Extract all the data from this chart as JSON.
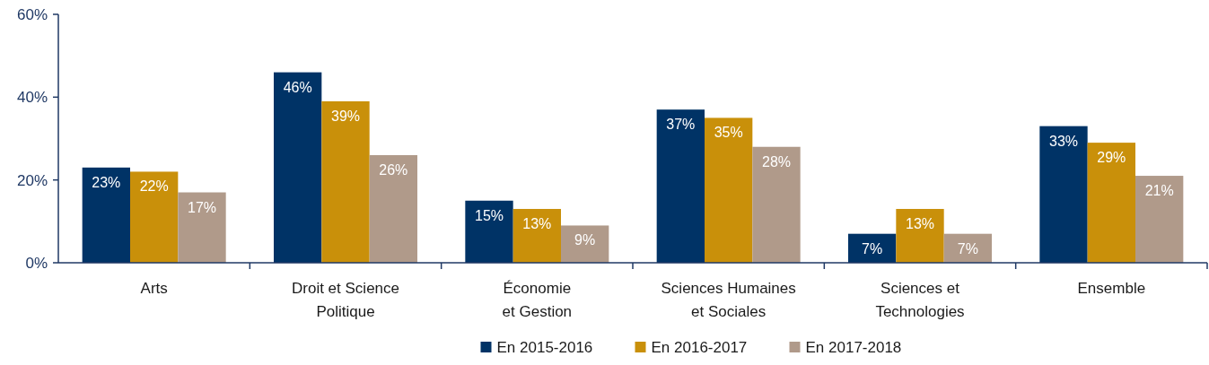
{
  "chart_data": {
    "type": "bar",
    "categories": [
      "Arts",
      "Droit et Science\nPolitique",
      "Économie\net Gestion",
      "Sciences Humaines\net Sociales",
      "Sciences et\nTechnologies",
      "Ensemble"
    ],
    "series": [
      {
        "name": "En 2015-2016",
        "color": "#003366",
        "values": [
          23,
          46,
          15,
          37,
          7,
          33
        ],
        "value_labels": [
          "23%",
          "46%",
          "15%",
          "37%",
          "7%",
          "33%"
        ]
      },
      {
        "name": "En 2016-2017",
        "color": "#c9900a",
        "values": [
          22,
          39,
          13,
          35,
          13,
          29
        ],
        "value_labels": [
          "22%",
          "39%",
          "13%",
          "35%",
          "13%",
          "29%"
        ]
      },
      {
        "name": "En 2017-2018",
        "color": "#b09a8a",
        "values": [
          17,
          26,
          9,
          28,
          7,
          21
        ],
        "value_labels": [
          "17%",
          "26%",
          "9%",
          "28%",
          "7%",
          "21%"
        ]
      }
    ],
    "ylim": [
      0,
      60
    ],
    "yticks": [
      {
        "value": 0,
        "label": "0%"
      },
      {
        "value": 20,
        "label": "20%"
      },
      {
        "value": 40,
        "label": "40%"
      },
      {
        "value": 60,
        "label": "60%"
      }
    ],
    "grid": false,
    "legend": "bottom"
  }
}
